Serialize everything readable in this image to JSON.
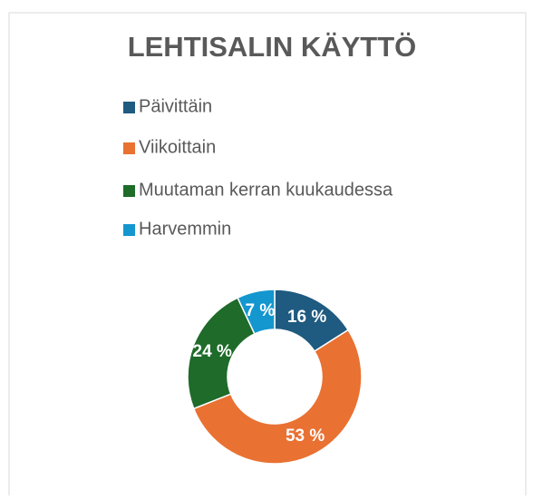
{
  "chart_data": {
    "type": "donut",
    "title": "LEHTISALIN KÄYTTÖ",
    "categories": [
      "Päivittäin",
      "Viikoittain",
      "Muutaman kerran kuukaudessa",
      "Harvemmin"
    ],
    "values": [
      16,
      53,
      24,
      7
    ],
    "value_labels": [
      "16 %",
      "53 %",
      "24 %",
      "7 %"
    ],
    "colors": [
      "#1f5a80",
      "#e97132",
      "#1e6b2a",
      "#1496cf"
    ],
    "legend": "top"
  }
}
